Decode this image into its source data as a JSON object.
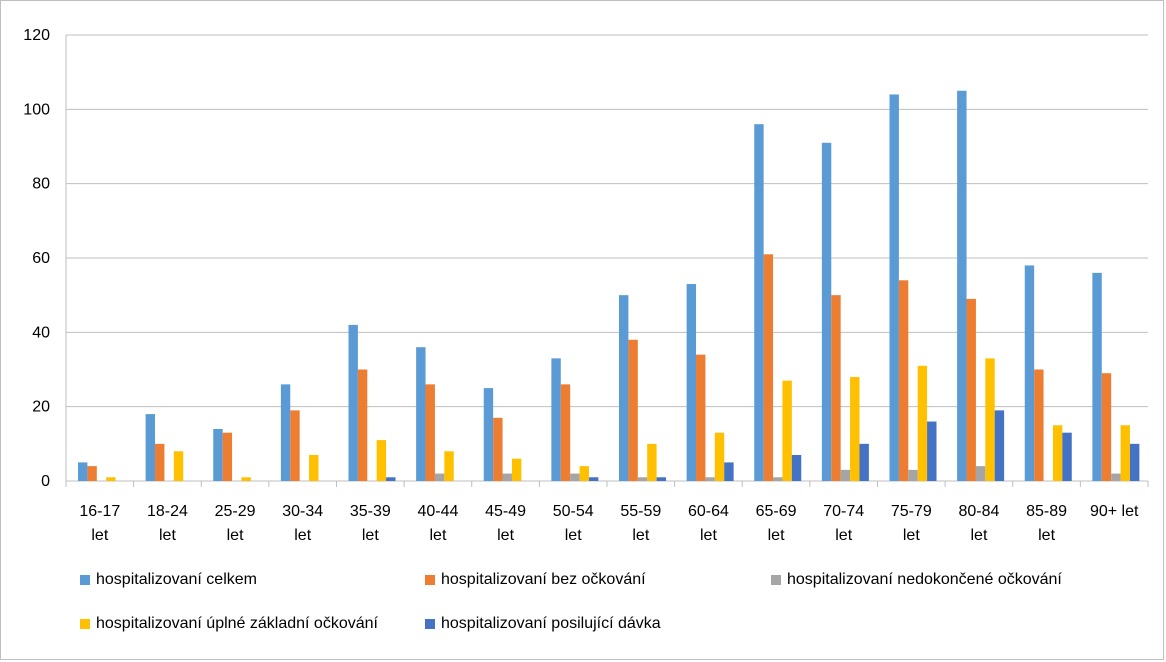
{
  "chart_data": {
    "type": "bar",
    "title": "",
    "xlabel": "",
    "ylabel": "",
    "ylim": [
      0,
      120
    ],
    "yticks": [
      "0",
      "20",
      "40",
      "60",
      "80",
      "100",
      "120"
    ],
    "grid": true,
    "legend_position": "bottom",
    "categories": [
      [
        "16-17",
        "let"
      ],
      [
        "18-24",
        "let"
      ],
      [
        "25-29",
        "let"
      ],
      [
        "30-34",
        "let"
      ],
      [
        "35-39",
        "let"
      ],
      [
        "40-44",
        "let"
      ],
      [
        "45-49",
        "let"
      ],
      [
        "50-54",
        "let"
      ],
      [
        "55-59",
        "let"
      ],
      [
        "60-64",
        "let"
      ],
      [
        "65-69",
        "let"
      ],
      [
        "70-74",
        "let"
      ],
      [
        "75-79",
        "let"
      ],
      [
        "80-84",
        "let"
      ],
      [
        "85-89",
        "let"
      ],
      [
        "90+ let",
        ""
      ]
    ],
    "series": [
      {
        "name": "hospitalizovaní celkem",
        "color": "#5b9bd5",
        "values": [
          5,
          18,
          14,
          26,
          42,
          36,
          25,
          33,
          50,
          53,
          96,
          91,
          104,
          105,
          58,
          56
        ]
      },
      {
        "name": "hospitalizovaní bez očkování",
        "color": "#ed7d31",
        "values": [
          4,
          10,
          13,
          19,
          30,
          26,
          17,
          26,
          38,
          34,
          61,
          50,
          54,
          49,
          30,
          29
        ]
      },
      {
        "name": "hospitalizovaní nedokončené očkování",
        "color": "#a5a5a5",
        "values": [
          0,
          0,
          0,
          0,
          0,
          2,
          2,
          2,
          1,
          1,
          1,
          3,
          3,
          4,
          0,
          2
        ]
      },
      {
        "name": "hospitalizovaní úplné základní očkování",
        "color": "#ffc000",
        "values": [
          1,
          8,
          1,
          7,
          11,
          8,
          6,
          4,
          10,
          13,
          27,
          28,
          31,
          33,
          15,
          15
        ]
      },
      {
        "name": "hospitalizovaní posilující dávka",
        "color": "#4472c4",
        "values": [
          0,
          0,
          0,
          0,
          1,
          0,
          0,
          1,
          1,
          5,
          7,
          10,
          16,
          19,
          13,
          10
        ]
      }
    ]
  }
}
